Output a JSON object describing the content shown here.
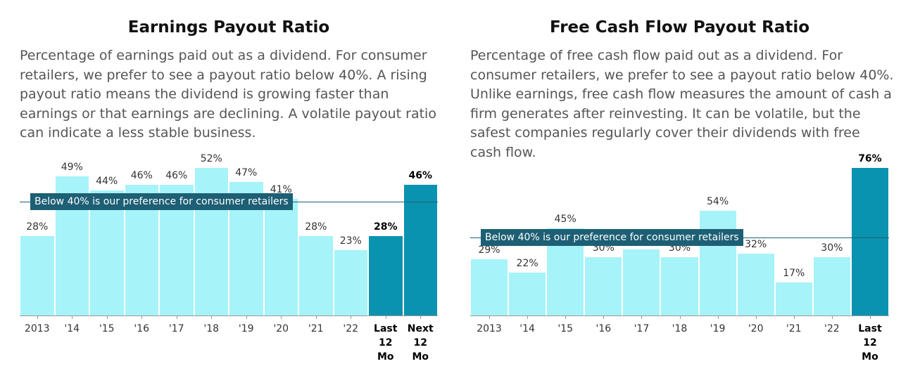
{
  "chart_data": [
    {
      "type": "bar",
      "title": "Earnings Payout Ratio",
      "subtitle": "Percentage of earnings paid out as a dividend. For consumer retailers, we prefer to see a payout ratio below 40%. A rising payout ratio means the dividend is growing faster than earnings or that earnings are declining. A volatile payout ratio can indicate a less stable business.",
      "categories": [
        "2013",
        "'14",
        "'15",
        "'16",
        "'17",
        "'18",
        "'19",
        "'20",
        "'21",
        "'22",
        "Last 12 Mo",
        "Next 12 Mo"
      ],
      "values": [
        28,
        49,
        44,
        46,
        46,
        52,
        47,
        41,
        28,
        23,
        28,
        46
      ],
      "value_labels": [
        "28%",
        "49%",
        "44%",
        "46%",
        "46%",
        "52%",
        "47%",
        "41%",
        "28%",
        "23%",
        "28%",
        "46%"
      ],
      "highlight": [
        false,
        false,
        false,
        false,
        false,
        false,
        false,
        false,
        false,
        false,
        true,
        true
      ],
      "color": "#a6f3fa",
      "highlight_color": "#0a93b0",
      "reference_line": {
        "value": 40,
        "label": "Below 40% is our preference for consumer retailers"
      }
    },
    {
      "type": "bar",
      "title": "Free Cash Flow Payout Ratio",
      "subtitle": "Percentage of free cash flow paid out as a dividend. For consumer retailers, we prefer to see a payout ratio below 40%. Unlike earnings, free cash flow measures the amount of cash a firm generates after reinvesting. It can be volatile, but the safest companies regularly cover their dividends with free cash flow.",
      "categories": [
        "2013",
        "'14",
        "'15",
        "'16",
        "'17",
        "'18",
        "'19",
        "'20",
        "'21",
        "'22",
        "Last 12 Mo"
      ],
      "values": [
        29,
        22,
        45,
        30,
        34,
        30,
        54,
        32,
        17,
        30,
        76
      ],
      "value_labels": [
        "29%",
        "22%",
        "45%",
        "30%",
        null,
        "30%",
        "54%",
        "32%",
        "17%",
        "30%",
        "76%"
      ],
      "highlight": [
        false,
        false,
        false,
        false,
        false,
        false,
        false,
        false,
        false,
        false,
        true
      ],
      "color": "#a6f3fa",
      "highlight_color": "#0a93b0",
      "reference_line": {
        "value": 40,
        "label": "Below 40% is our preference for consumer retailers"
      }
    }
  ]
}
